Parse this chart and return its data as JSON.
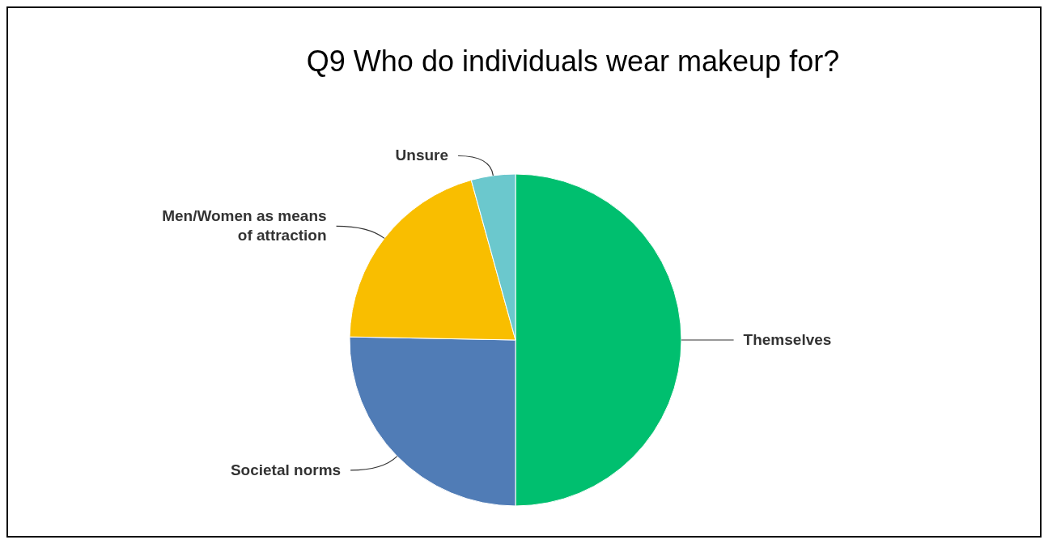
{
  "chart_data": {
    "type": "pie",
    "title": "Q9 Who do individuals wear makeup for?",
    "categories": [
      "Themselves",
      "Societal norms",
      "Men/Women as means of attraction",
      "Unsure"
    ],
    "values": [
      50,
      25.3,
      20.4,
      4.3
    ],
    "colors": [
      "#00bf6f",
      "#507cb6",
      "#f9be00",
      "#6bc8cd"
    ]
  }
}
